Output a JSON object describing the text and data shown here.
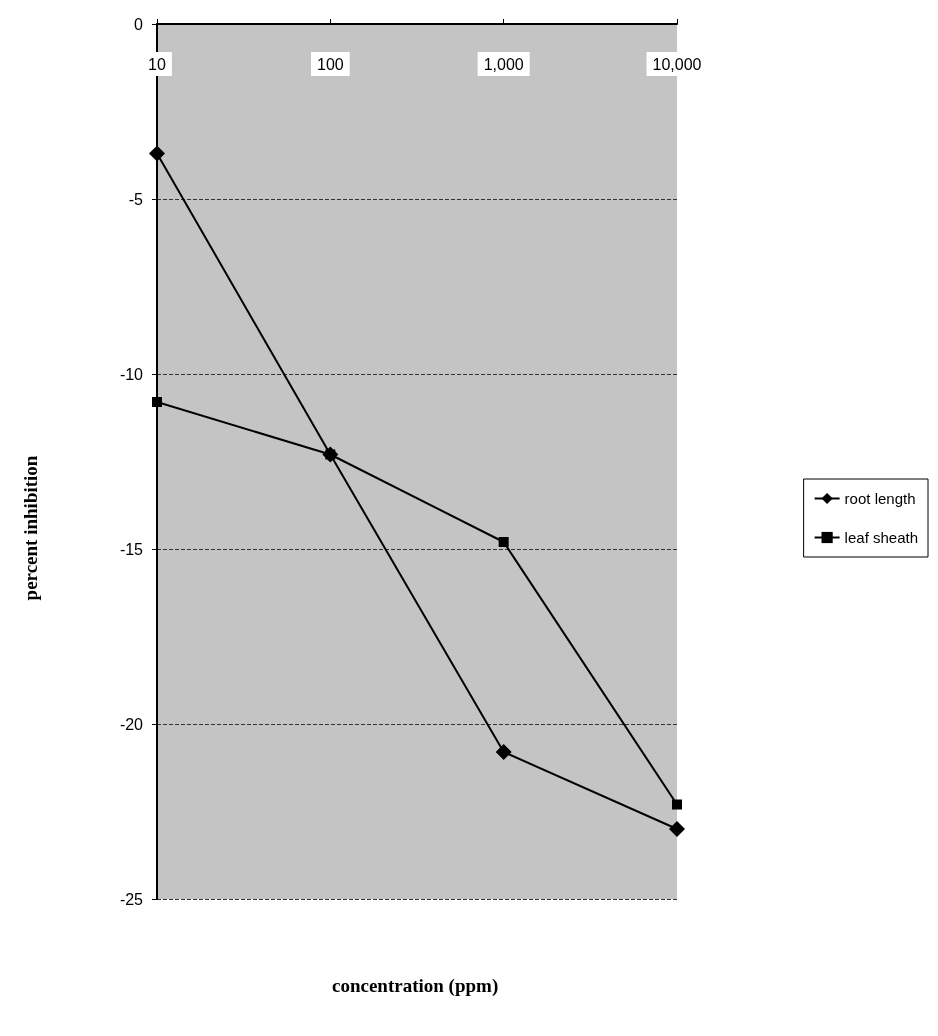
{
  "chart_data": {
    "type": "line",
    "xlabel": "concentration (ppm)",
    "ylabel": "percent inhibition",
    "log": "x",
    "x": [
      10,
      100,
      1000,
      10000
    ],
    "xlim": [
      10,
      10000
    ],
    "xticks": [
      10,
      100,
      {
        "value": 1000,
        "label": "1,000"
      },
      {
        "value": 10000,
        "label": "10,000"
      }
    ],
    "ylim": [
      -25,
      0
    ],
    "yticks": [
      -25,
      -20,
      -15,
      -10,
      -5,
      0
    ],
    "grid": "y",
    "legend": "right",
    "line_style": "solid",
    "series": [
      {
        "name": "root length",
        "color": "#000000",
        "marker": "diamond",
        "values": [
          -3.7,
          -12.3,
          -20.8,
          -23.0
        ]
      },
      {
        "name": "leaf sheath",
        "color": "#000000",
        "marker": "square",
        "values": [
          -10.8,
          -12.3,
          -14.8,
          -22.3
        ]
      }
    ]
  }
}
